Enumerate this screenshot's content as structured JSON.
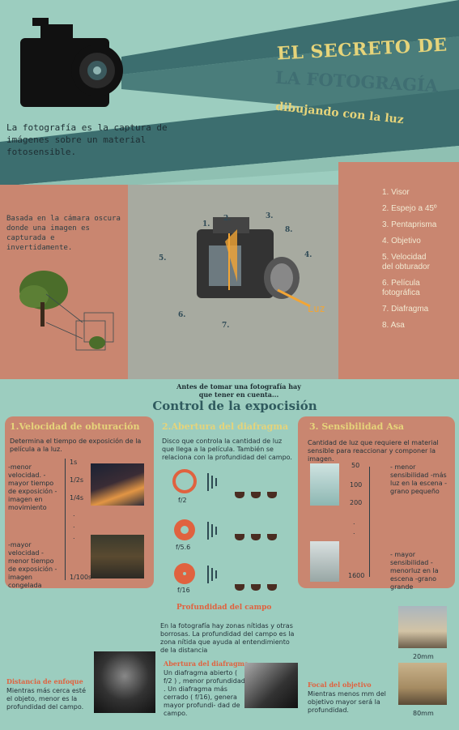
{
  "header": {
    "title_line1": "EL SECRETO DE",
    "title_line2": "LA FOTOGRAGÍA",
    "subtitle": "dibujando con la luz",
    "intro": "La fotografía es la captura de imágenes sobre un material fotosensible."
  },
  "camera_obscura": {
    "text": "Basada en la cámara oscura donde una imagen es capturada e invertidamente."
  },
  "parts": {
    "items": [
      "1. Visor",
      "2. Espejo a 45º",
      "3. Pentaprisma",
      "4. Objetivo",
      "5. Velocidad del obturador",
      "6. Película fotográfica",
      "7. Diafragma",
      "8. Asa"
    ],
    "diagram_numbers": [
      "1.",
      "2.",
      "3.",
      "4.",
      "5.",
      "6.",
      "7.",
      "8."
    ],
    "luz_label": "Luz"
  },
  "exposure": {
    "pre_text": "Antes de tomar una fotografía hay que tener en cuenta...",
    "title": "Control de la expocisión"
  },
  "speed": {
    "title": "1.Velocidad de obturación",
    "desc": "Determina el tiempo de exposición de la película a la luz.",
    "left_top": "-menor velocidad. -mayor tiempo de exposición -imagen en movimiento",
    "left_bottom": "-mayor velocidad -menor tiempo de exposición -imagen congelada",
    "scale": [
      "1s",
      "1/2s",
      "1/4s",
      ".",
      ".",
      ".",
      "1/100s"
    ]
  },
  "aperture": {
    "title": "2.Abertura del diafragma",
    "desc": "Disco que controla la cantidad de luz que llega a la película. También se relaciona con la profundidad del campo.",
    "stops": [
      "f/2",
      "f/5.6",
      "f/16"
    ]
  },
  "iso": {
    "title": "3. Sensibilidad Asa",
    "desc": "Cantidad de luz que requiere el material sensible para reaccionar y componer la imagen.",
    "scale": [
      "50",
      "100",
      "200",
      ".",
      ".",
      "1600"
    ],
    "low_text": "- menor sensibilidad -más luz en la escena -grano pequeño",
    "high_text": "- mayor sensibilidad - menorluz en la escena -grano grande"
  },
  "depth": {
    "title": "Profundidad del campo",
    "desc": "En la fotografía hay zonas nítidas y otras borrosas. La profundidad del campo es la zona nítida que ayuda al entendimiento de la distancia",
    "distance_title": "Distancia de enfoque",
    "distance_text": "Mientras más cerca esté el objeto, menor es la profundidad del campo.",
    "aperture_title": "Abertura del diafragma",
    "aperture_text": "Un diafragma abierto ( f/2 ) , menor profundidad . Un diafragma más cerrado ( f/16), genera mayor profundi- dad de campo.",
    "focal_title": "Focal del objetivo",
    "focal_text": "Mientras menos mm del objetivo mayor será la profundidad.",
    "photo_labels": [
      "20mm",
      "80mm"
    ]
  },
  "colors": {
    "background": "#9ccdbf",
    "panel": "#c98670",
    "title_yellow": "#e6d47a",
    "accent_orange": "#e0623f"
  }
}
